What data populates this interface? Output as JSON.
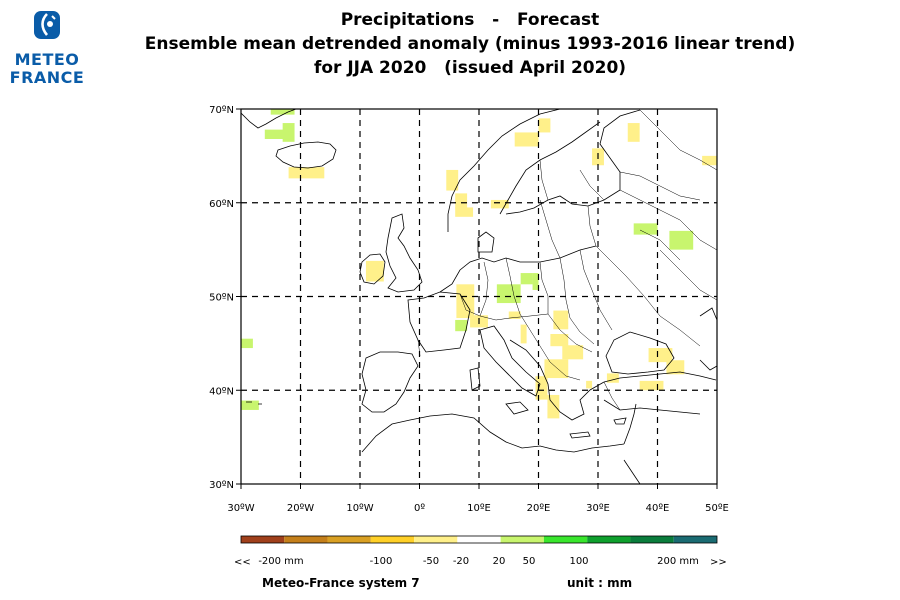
{
  "logo": {
    "line1": "METEO",
    "line2": "FRANCE",
    "icon": "meteo-france-logo-icon",
    "color": "#0a5ca8"
  },
  "title": {
    "line1": "Precipitations   -   Forecast",
    "line2": "Ensemble mean detrended anomaly (minus 1993-2016 linear trend)",
    "line3": "for JJA 2020   (issued April 2020)"
  },
  "map": {
    "lon_range": [
      -30,
      50
    ],
    "lat_range": [
      30,
      70
    ],
    "grid": "dashed",
    "lat_ticks": [
      {
        "value": 70,
        "label": "70ºN"
      },
      {
        "value": 60,
        "label": "60ºN"
      },
      {
        "value": 50,
        "label": "50ºN"
      },
      {
        "value": 40,
        "label": "40ºN"
      },
      {
        "value": 30,
        "label": "30ºN"
      }
    ],
    "lon_ticks": [
      {
        "value": -30,
        "label": "30ºW"
      },
      {
        "value": -20,
        "label": "20ºW"
      },
      {
        "value": -10,
        "label": "10ºW"
      },
      {
        "value": 0,
        "label": "0º"
      },
      {
        "value": 10,
        "label": "10ºE"
      },
      {
        "value": 20,
        "label": "20ºE"
      },
      {
        "value": 30,
        "label": "30ºE"
      },
      {
        "value": 40,
        "label": "40ºE"
      },
      {
        "value": 50,
        "label": "50ºE"
      }
    ],
    "anomaly_cells": [
      {
        "lon": -25,
        "lat": 70,
        "w": 4,
        "h": 0.6,
        "cls": "pos1"
      },
      {
        "lon": -23,
        "lat": 68.5,
        "w": 2,
        "h": 2,
        "cls": "pos1"
      },
      {
        "lon": -26,
        "lat": 67.8,
        "w": 4,
        "h": 1,
        "cls": "pos1"
      },
      {
        "lon": -22,
        "lat": 63.8,
        "w": 6,
        "h": 1.2,
        "cls": "neg1"
      },
      {
        "lon": 4.5,
        "lat": 63.5,
        "w": 2,
        "h": 2.2,
        "cls": "neg1"
      },
      {
        "lon": 6,
        "lat": 61,
        "w": 2,
        "h": 1.6,
        "cls": "neg1"
      },
      {
        "lon": 6,
        "lat": 59.5,
        "w": 3,
        "h": 1,
        "cls": "neg1"
      },
      {
        "lon": 12,
        "lat": 60.3,
        "w": 3,
        "h": 0.9,
        "cls": "neg1"
      },
      {
        "lon": 16,
        "lat": 67.5,
        "w": 4,
        "h": 1.5,
        "cls": "neg1"
      },
      {
        "lon": 20,
        "lat": 69,
        "w": 2,
        "h": 1.5,
        "cls": "neg1"
      },
      {
        "lon": 35,
        "lat": 68.5,
        "w": 2,
        "h": 2,
        "cls": "neg1"
      },
      {
        "lon": 29,
        "lat": 65.8,
        "w": 2,
        "h": 1.8,
        "cls": "neg1"
      },
      {
        "lon": 47.5,
        "lat": 65,
        "w": 3,
        "h": 1,
        "cls": "neg1"
      },
      {
        "lon": -9,
        "lat": 53.8,
        "w": 3,
        "h": 2.2,
        "cls": "neg1"
      },
      {
        "lon": 6.2,
        "lat": 51.3,
        "w": 3,
        "h": 3.6,
        "cls": "neg1"
      },
      {
        "lon": 6,
        "lat": 47.5,
        "w": 2,
        "h": 1.2,
        "cls": "pos1"
      },
      {
        "lon": 13,
        "lat": 51.3,
        "w": 4,
        "h": 2,
        "cls": "pos1"
      },
      {
        "lon": 17,
        "lat": 52.5,
        "w": 2,
        "h": 1.2,
        "cls": "pos1"
      },
      {
        "lon": 19,
        "lat": 52.5,
        "w": 1,
        "h": 1.8,
        "cls": "pos1"
      },
      {
        "lon": 8.5,
        "lat": 48,
        "w": 3,
        "h": 1.3,
        "cls": "neg1"
      },
      {
        "lon": 22.5,
        "lat": 48.5,
        "w": 2.5,
        "h": 2,
        "cls": "neg1"
      },
      {
        "lon": 22,
        "lat": 46,
        "w": 3,
        "h": 1.3,
        "cls": "neg1"
      },
      {
        "lon": 24,
        "lat": 44.8,
        "w": 3.5,
        "h": 1.5,
        "cls": "neg1"
      },
      {
        "lon": 21,
        "lat": 43.3,
        "w": 4,
        "h": 2,
        "cls": "neg1"
      },
      {
        "lon": 19.5,
        "lat": 41.5,
        "w": 2,
        "h": 2.5,
        "cls": "neg1"
      },
      {
        "lon": 21.5,
        "lat": 39.5,
        "w": 2,
        "h": 2.5,
        "cls": "neg1"
      },
      {
        "lon": 28,
        "lat": 41,
        "w": 1,
        "h": 0.8,
        "cls": "neg1"
      },
      {
        "lon": 31.5,
        "lat": 41.8,
        "w": 2,
        "h": 1,
        "cls": "neg1"
      },
      {
        "lon": 37,
        "lat": 41,
        "w": 4,
        "h": 1,
        "cls": "neg1"
      },
      {
        "lon": 38.5,
        "lat": 44.5,
        "w": 4,
        "h": 1.5,
        "cls": "neg1"
      },
      {
        "lon": 41.5,
        "lat": 43.2,
        "w": 3,
        "h": 1.5,
        "cls": "neg1"
      },
      {
        "lon": 17,
        "lat": 47,
        "w": 1,
        "h": 2,
        "cls": "neg1"
      },
      {
        "lon": 15,
        "lat": 48.4,
        "w": 2,
        "h": 0.8,
        "cls": "neg1"
      },
      {
        "lon": 36,
        "lat": 57.8,
        "w": 4,
        "h": 1.2,
        "cls": "pos1"
      },
      {
        "lon": 42,
        "lat": 57,
        "w": 4,
        "h": 2,
        "cls": "pos1"
      },
      {
        "lon": -30,
        "lat": 45.5,
        "w": 2,
        "h": 1,
        "cls": "pos1"
      },
      {
        "lon": -30,
        "lat": 38.9,
        "w": 3,
        "h": 1,
        "cls": "pos1"
      }
    ]
  },
  "colorbar": {
    "colors": [
      "#a0401b",
      "#c47f1a",
      "#d9a023",
      "#ffd028",
      "#fff08a",
      "#ffffff",
      "#c8f56e",
      "#39e62d",
      "#0fa02d",
      "#0a7d3c",
      "#1a6b72"
    ],
    "left_arrow": "<<",
    "right_arrow": ">>",
    "labels": [
      {
        "text": "-200 mm",
        "pos": 0
      },
      {
        "text": "-100",
        "pos": 1
      },
      {
        "text": "-50",
        "pos": 2
      },
      {
        "text": "-20",
        "pos": 3
      },
      {
        "text": "20",
        "pos": 4
      },
      {
        "text": "50",
        "pos": 5
      },
      {
        "text": "100",
        "pos": 6
      },
      {
        "text": "200 mm",
        "pos": 7
      }
    ]
  },
  "footer": {
    "system": "Meteo-France system 7",
    "unit": "unit :  mm"
  }
}
